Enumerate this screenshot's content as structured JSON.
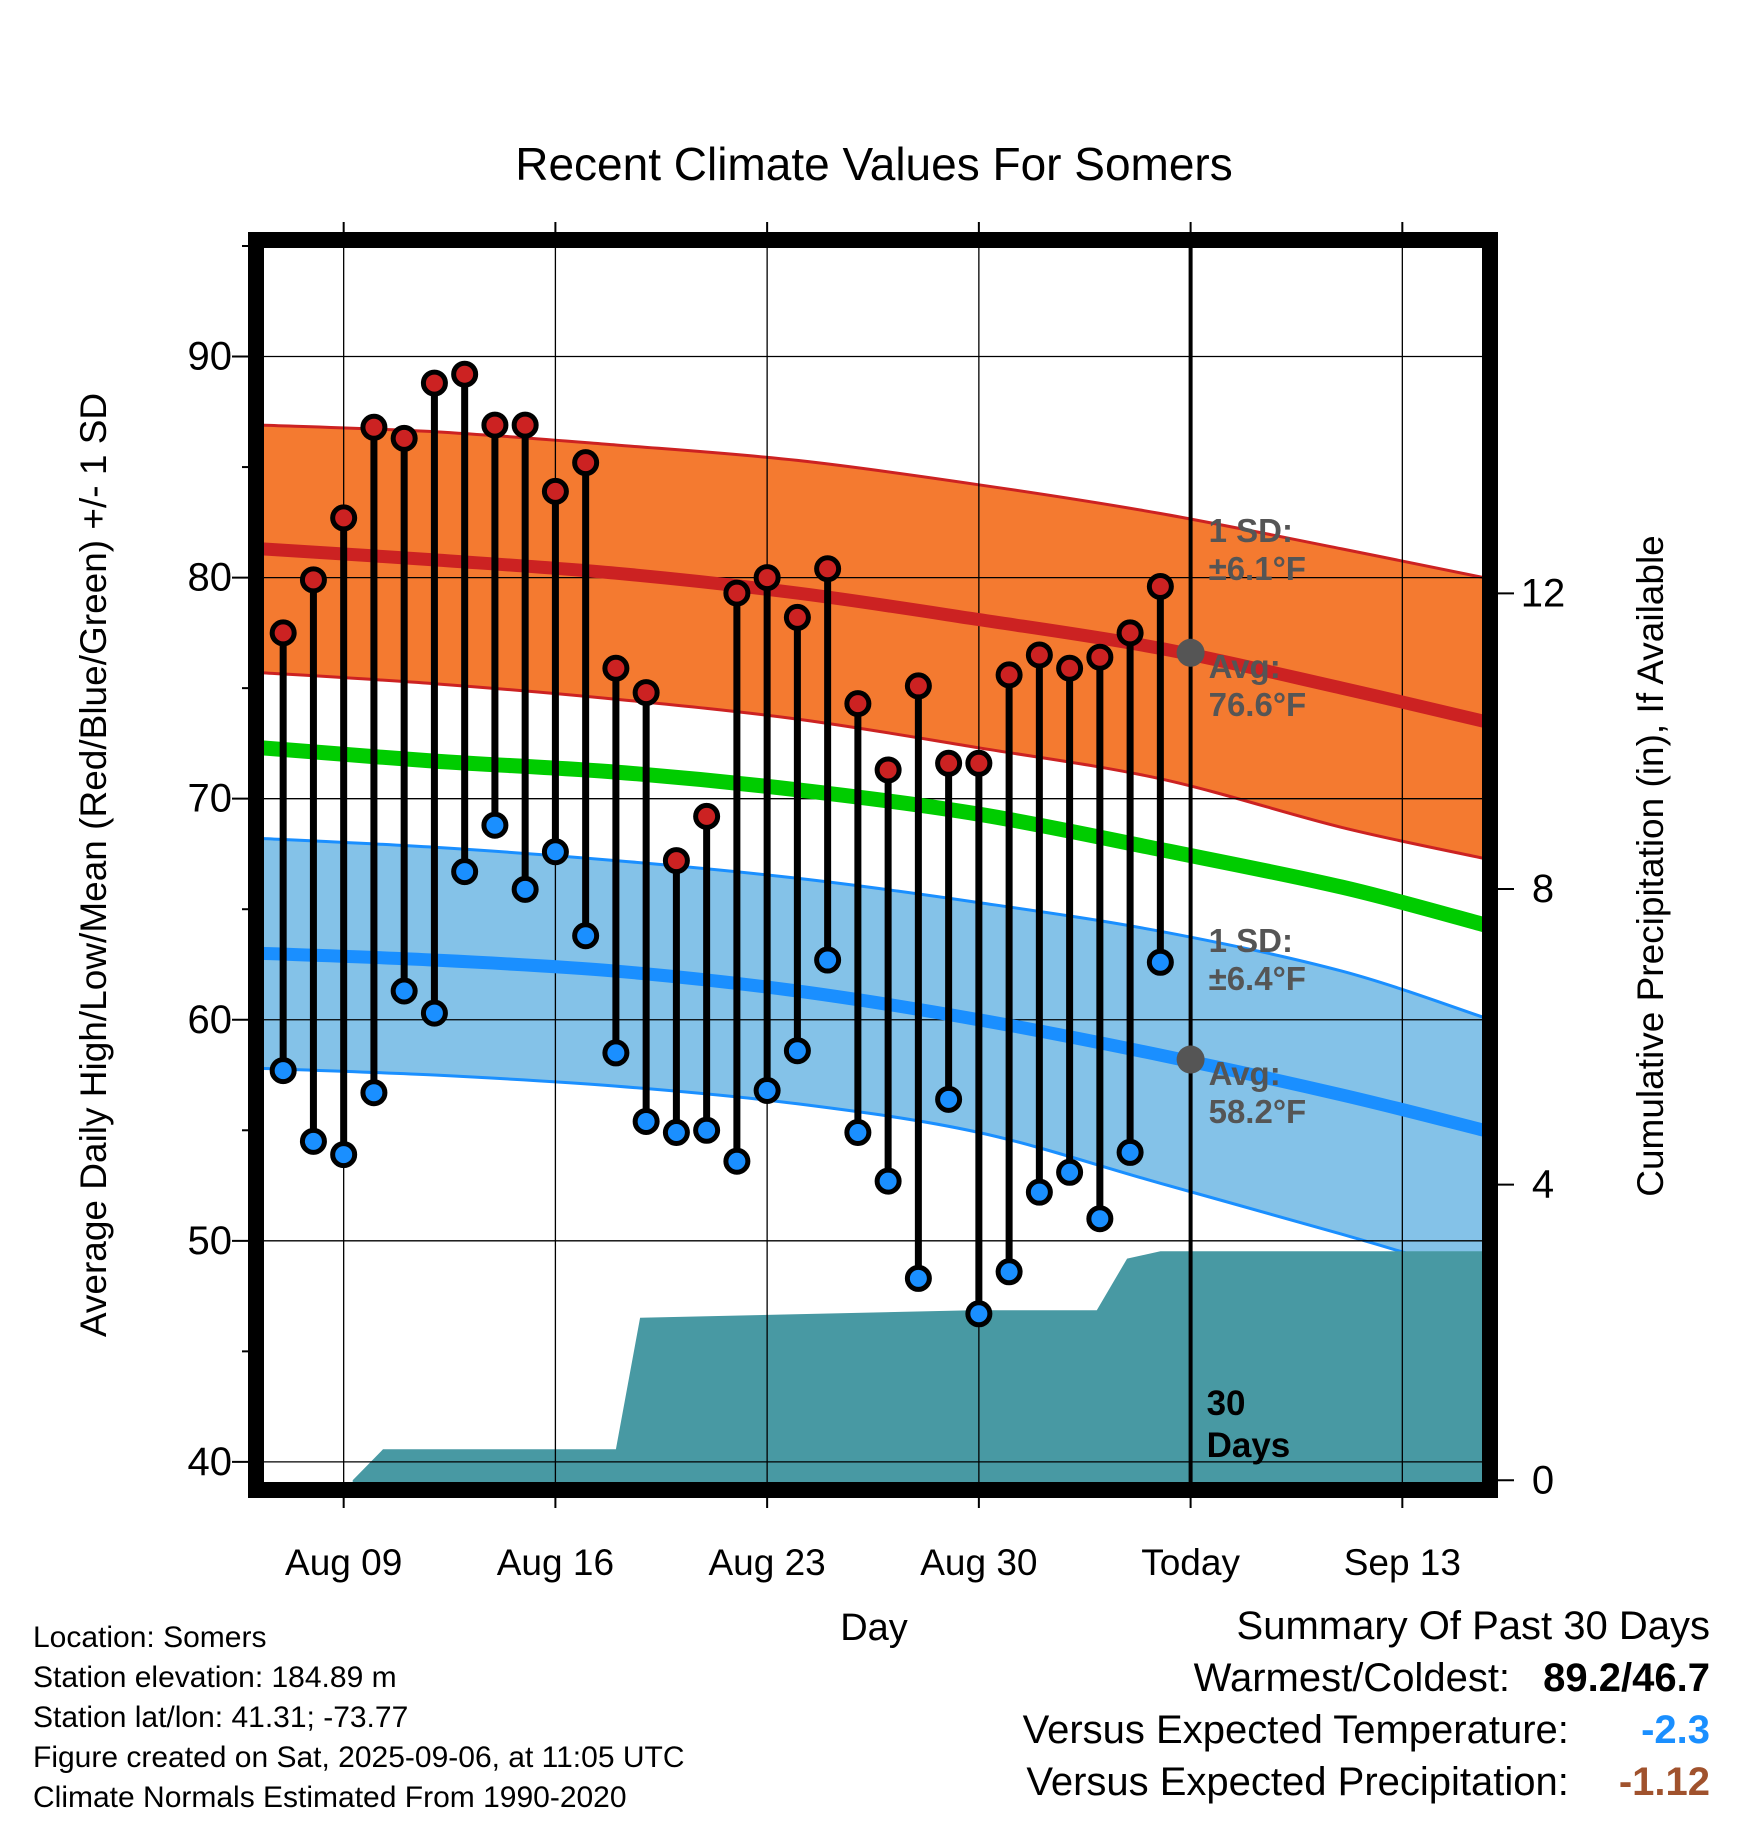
{
  "chart_data": {
    "type": "line",
    "title": "Recent Climate Values For Somers",
    "xlabel": "Day",
    "ylabel": "Average Daily High/Low/Mean (Red/Blue/Green) +/- 1 SD",
    "y2label": "Cumulative Precipitation (in), If Available",
    "x_ticks": [
      {
        "day": 0,
        "label": "Aug 09"
      },
      {
        "day": 7,
        "label": "Aug 16"
      },
      {
        "day": 14,
        "label": "Aug 23"
      },
      {
        "day": 21,
        "label": "Aug 30"
      },
      {
        "day": 28,
        "label": "Today"
      },
      {
        "day": 35,
        "label": "Sep 13"
      }
    ],
    "xlim_days": [
      -2.7,
      37.7
    ],
    "ylim": [
      39,
      95
    ],
    "y_ticks": [
      40,
      50,
      60,
      70,
      80,
      90
    ],
    "y2lim": [
      -0.05,
      16.7
    ],
    "y2_ticks": [
      0,
      4,
      8,
      12
    ],
    "grid": true,
    "today_day": 28,
    "days": [
      -2,
      -1,
      0,
      1,
      2,
      3,
      4,
      5,
      6,
      7,
      8,
      9,
      10,
      11,
      12,
      13,
      14,
      15,
      16,
      17,
      18,
      19,
      20,
      21,
      22,
      23,
      24,
      25,
      26,
      27
    ],
    "series": [
      {
        "name": "High",
        "color": "#cc2222",
        "values": [
          77.5,
          79.9,
          82.7,
          86.8,
          86.3,
          88.8,
          89.2,
          86.9,
          86.9,
          83.9,
          85.2,
          75.9,
          74.8,
          67.2,
          69.2,
          79.3,
          80.0,
          78.2,
          80.4,
          74.3,
          71.3,
          75.1,
          71.6,
          71.6,
          75.6,
          76.5,
          75.9,
          76.4,
          77.5,
          79.6
        ]
      },
      {
        "name": "Low",
        "color": "#1a8fff",
        "values": [
          57.7,
          54.5,
          53.9,
          56.7,
          61.3,
          60.3,
          66.7,
          68.8,
          65.9,
          67.6,
          63.8,
          58.5,
          55.4,
          54.9,
          55.0,
          53.6,
          56.8,
          58.6,
          62.7,
          54.9,
          52.7,
          48.3,
          56.4,
          46.7,
          48.6,
          52.2,
          53.1,
          51.0,
          54.0,
          62.6
        ]
      }
    ],
    "normals": {
      "days": [
        -2.7,
        3,
        9,
        15,
        21,
        27,
        33,
        37.7
      ],
      "high_avg": [
        81.3,
        80.8,
        80.2,
        79.3,
        78.1,
        76.8,
        75.0,
        73.5
      ],
      "high_upper": [
        86.9,
        86.6,
        86.0,
        85.3,
        84.2,
        82.9,
        81.3,
        80.0
      ],
      "high_lower": [
        75.7,
        75.2,
        74.5,
        73.6,
        72.3,
        70.9,
        68.7,
        67.3
      ],
      "mean": [
        72.3,
        71.7,
        71.2,
        70.4,
        69.3,
        67.7,
        66.0,
        64.3
      ],
      "low_avg": [
        63.0,
        62.7,
        62.2,
        61.3,
        60.0,
        58.4,
        56.6,
        55.0
      ],
      "low_upper": [
        68.2,
        67.8,
        67.2,
        66.4,
        65.3,
        64.0,
        62.2,
        60.1
      ],
      "low_lower": [
        57.8,
        57.5,
        57.0,
        56.2,
        54.9,
        52.6,
        50.3,
        48.4
      ]
    },
    "precipitation": {
      "days": [
        0.3,
        1.3,
        7.8,
        9.0,
        9.8,
        20.8,
        23.9,
        24.9,
        25.9,
        27.0,
        37.7
      ],
      "values": [
        0,
        0.42,
        0.42,
        0.42,
        2.2,
        2.3,
        2.3,
        2.3,
        3.0,
        3.1,
        3.1
      ]
    },
    "annotations": {
      "high_sd": "1 SD:\n±6.1°F",
      "high_avg": "Avg:\n76.6°F",
      "low_sd": "1 SD:\n±6.4°F",
      "low_avg": "Avg:\n58.2°F",
      "days": "30\nDays"
    },
    "colors": {
      "high_band": "#f47a30",
      "high_line": "#cc2222",
      "mean_line": "#00cc00",
      "low_band": "#84c2e8",
      "low_line": "#1a8fff",
      "precip": "#4899a3",
      "marker_today": "#555555"
    }
  },
  "info": [
    "Location: Somers",
    "Station elevation: 184.89 m",
    "Station lat/lon: 41.31; -73.77",
    "Figure created on Sat, 2025-09-06, at 11:05 UTC",
    "Climate Normals Estimated From 1990-2020"
  ],
  "summary": {
    "title": "Summary Of Past 30 Days",
    "warmest_label": "Warmest/Coldest:",
    "warmest_value": "89.2/46.7",
    "temp_label": "Versus Expected Temperature:",
    "temp_value": "-2.3",
    "temp_color": "#1a8fff",
    "precip_label": "Versus Expected Precipitation:",
    "precip_value": "-1.12",
    "precip_color": "#a0522d"
  }
}
